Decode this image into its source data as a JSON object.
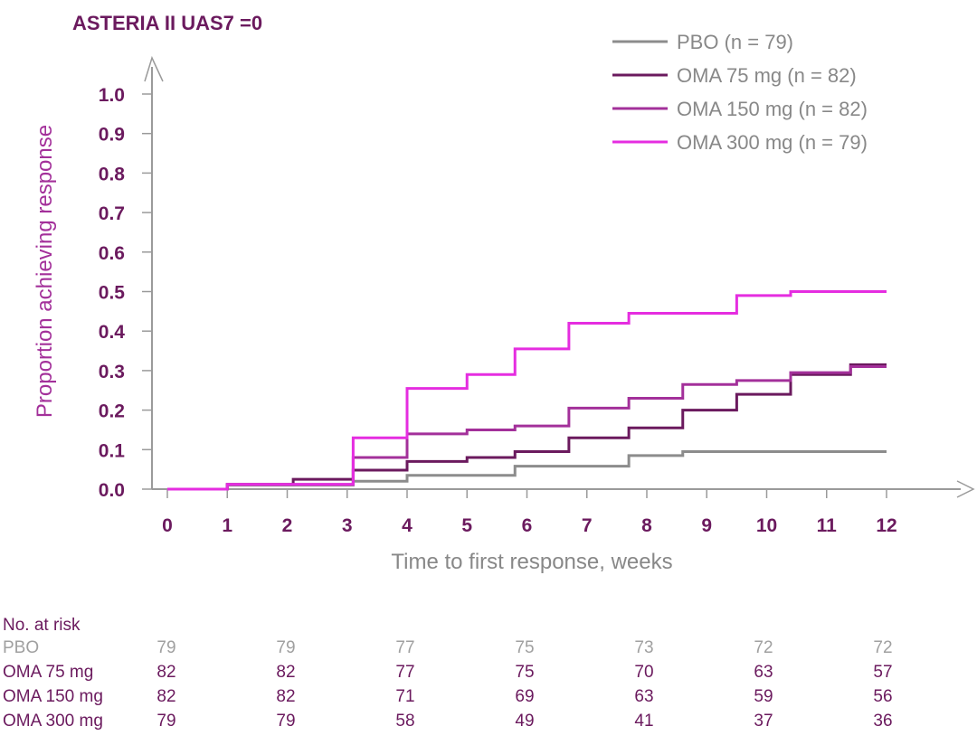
{
  "chart_data": {
    "type": "line",
    "title": "ASTERIA II UAS7 =0",
    "xlabel": "Time to first response, weeks",
    "ylabel": "Proportion achieving response",
    "xlim": [
      0,
      12
    ],
    "ylim": [
      0,
      1.0
    ],
    "xticks": [
      "0",
      "1",
      "2",
      "3",
      "4",
      "5",
      "6",
      "7",
      "8",
      "9",
      "10",
      "11",
      "12"
    ],
    "yticks": [
      "0.0",
      "0.1",
      "0.2",
      "0.3",
      "0.4",
      "0.5",
      "0.6",
      "0.7",
      "0.8",
      "0.9",
      "1.0"
    ],
    "legend_position": "top-right",
    "series": [
      {
        "name": "PBO (n = 79)",
        "color": "#8c8c8c",
        "steps": [
          [
            0,
            0
          ],
          [
            1,
            0.01
          ],
          [
            3.1,
            0.02
          ],
          [
            4,
            0.035
          ],
          [
            5.8,
            0.058
          ],
          [
            7.7,
            0.085
          ],
          [
            8.6,
            0.095
          ],
          [
            12,
            0.095
          ]
        ]
      },
      {
        "name": "OMA 75 mg (n = 82)",
        "color": "#6b1a5e",
        "steps": [
          [
            0,
            0
          ],
          [
            1,
            0.012
          ],
          [
            2.1,
            0.025
          ],
          [
            3.1,
            0.048
          ],
          [
            4,
            0.07
          ],
          [
            5,
            0.08
          ],
          [
            5.8,
            0.095
          ],
          [
            6.7,
            0.13
          ],
          [
            7.7,
            0.155
          ],
          [
            8.6,
            0.2
          ],
          [
            9.5,
            0.24
          ],
          [
            10.4,
            0.29
          ],
          [
            11.4,
            0.315
          ],
          [
            12,
            0.315
          ]
        ]
      },
      {
        "name": "OMA 150 mg (n = 82)",
        "color": "#a3309a",
        "steps": [
          [
            0,
            0
          ],
          [
            1,
            0.012
          ],
          [
            3.1,
            0.08
          ],
          [
            4,
            0.14
          ],
          [
            5,
            0.15
          ],
          [
            5.8,
            0.16
          ],
          [
            6.7,
            0.205
          ],
          [
            7.7,
            0.23
          ],
          [
            8.6,
            0.265
          ],
          [
            9.5,
            0.275
          ],
          [
            10.4,
            0.295
          ],
          [
            11.4,
            0.31
          ],
          [
            12,
            0.31
          ]
        ]
      },
      {
        "name": "OMA 300 mg (n = 79)",
        "color": "#e52de0",
        "steps": [
          [
            0,
            0
          ],
          [
            1,
            0.012
          ],
          [
            3.1,
            0.13
          ],
          [
            4,
            0.255
          ],
          [
            5,
            0.29
          ],
          [
            5.8,
            0.355
          ],
          [
            6.7,
            0.42
          ],
          [
            7.7,
            0.445
          ],
          [
            9.5,
            0.49
          ],
          [
            10.4,
            0.5
          ],
          [
            12,
            0.5
          ]
        ]
      }
    ]
  },
  "risk_table": {
    "header": "No. at risk",
    "rows": [
      {
        "label": "PBO",
        "values": [
          "79",
          "79",
          "77",
          "75",
          "73",
          "72",
          "72"
        ],
        "color": "#a0a0a0"
      },
      {
        "label": "OMA 75 mg",
        "values": [
          "82",
          "82",
          "77",
          "75",
          "70",
          "63",
          "57"
        ],
        "color": "#6b1a5e"
      },
      {
        "label": "OMA 150 mg",
        "values": [
          "82",
          "82",
          "71",
          "69",
          "63",
          "59",
          "56"
        ],
        "color": "#6b1a5e"
      },
      {
        "label": "OMA 300 mg",
        "values": [
          "79",
          "79",
          "58",
          "49",
          "41",
          "37",
          "36"
        ],
        "color": "#6b1a5e"
      }
    ]
  },
  "colors": {
    "title": "#6b1a5e",
    "axis": "#9a9a9a",
    "ylabel": "#a3309a",
    "xlabel": "#888888"
  }
}
